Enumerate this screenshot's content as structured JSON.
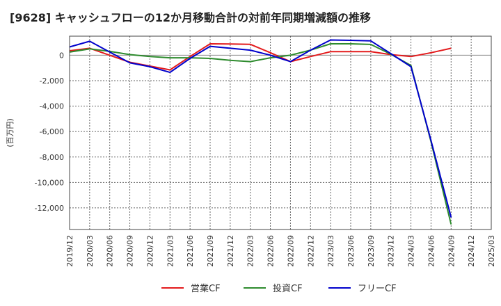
{
  "chart_data": {
    "type": "line",
    "title": "[9628]  キャッシュフローの12か月移動合計の対前年同期増減額の推移",
    "ylabel": "(百万円)",
    "xlabel": "",
    "x": [
      "2019/12",
      "2020/03",
      "2020/06",
      "2020/09",
      "2020/12",
      "2021/03",
      "2021/06",
      "2021/09",
      "2021/12",
      "2022/03",
      "2022/06",
      "2022/09",
      "2022/12",
      "2023/03",
      "2023/06",
      "2023/09",
      "2023/12",
      "2024/03",
      "2024/06",
      "2024/09",
      "2024/12",
      "2025/03"
    ],
    "yticks": [
      "0",
      "-2,000",
      "-4,000",
      "-6,000",
      "-8,000",
      "-10,000",
      "-12,000"
    ],
    "ylim": [
      -13700,
      1500
    ],
    "grid": true,
    "legend_position": "bottom",
    "series": [
      {
        "name": "営業CF",
        "color": "#e31a1c",
        "values": [
          350,
          550,
          0,
          -550,
          -850,
          -1150,
          -100,
          900,
          880,
          860,
          200,
          -500,
          -100,
          280,
          280,
          280,
          50,
          -100,
          200,
          550,
          null,
          null
        ]
      },
      {
        "name": "投資CF",
        "color": "#2e8b2e",
        "values": [
          250,
          500,
          300,
          50,
          -100,
          -200,
          -200,
          -250,
          -400,
          -500,
          -200,
          0,
          400,
          900,
          900,
          850,
          80,
          -800,
          -6800,
          -13300,
          null,
          null
        ]
      },
      {
        "name": "フリーCF",
        "color": "#0000cc",
        "values": [
          650,
          1100,
          250,
          -600,
          -900,
          -1350,
          -250,
          700,
          550,
          400,
          0,
          -500,
          400,
          1200,
          1170,
          1130,
          130,
          -900,
          -6700,
          -12750,
          null,
          null
        ]
      }
    ]
  }
}
